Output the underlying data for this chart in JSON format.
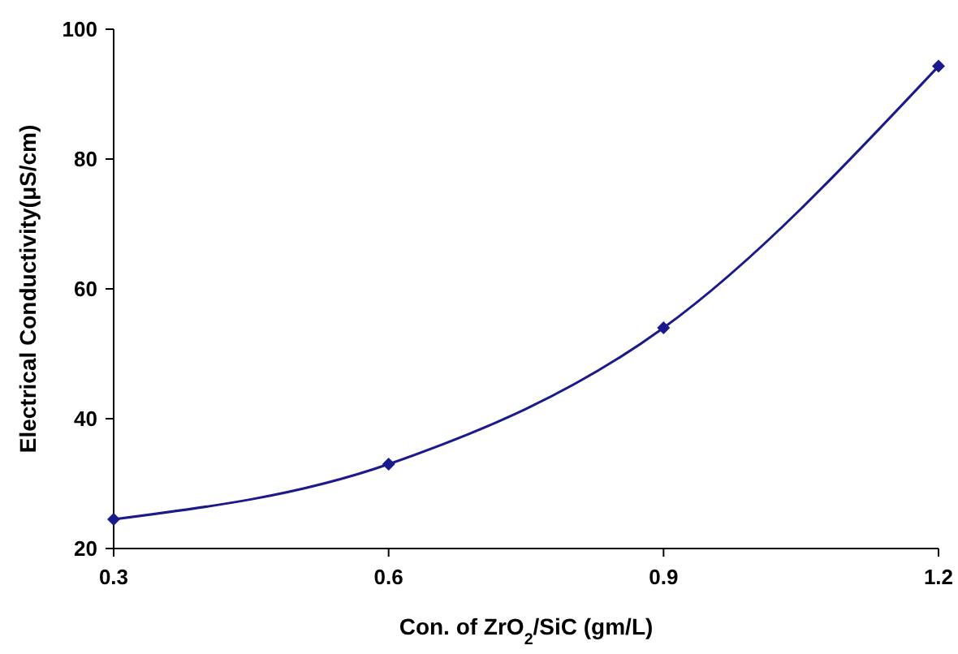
{
  "chart_data": {
    "type": "line",
    "xlabel": "Con. of ZrO$_{2}$/SiC (gm/L)",
    "ylabel": "Electrical Conductivity(μS/cm)",
    "x": [
      0.3,
      0.6,
      0.9,
      1.2
    ],
    "series": [
      {
        "color": "#1a1a8c",
        "values": [
          24.5,
          33,
          54,
          94.3
        ]
      }
    ],
    "xlim": [
      0.3,
      1.2
    ],
    "xticks": [
      0.3,
      0.6,
      0.9,
      1.2
    ],
    "ylim": [
      20,
      100
    ],
    "yticks": [
      20,
      40,
      60,
      80,
      100
    ],
    "marker": "diamond",
    "line_style": "solid",
    "grid": false
  }
}
